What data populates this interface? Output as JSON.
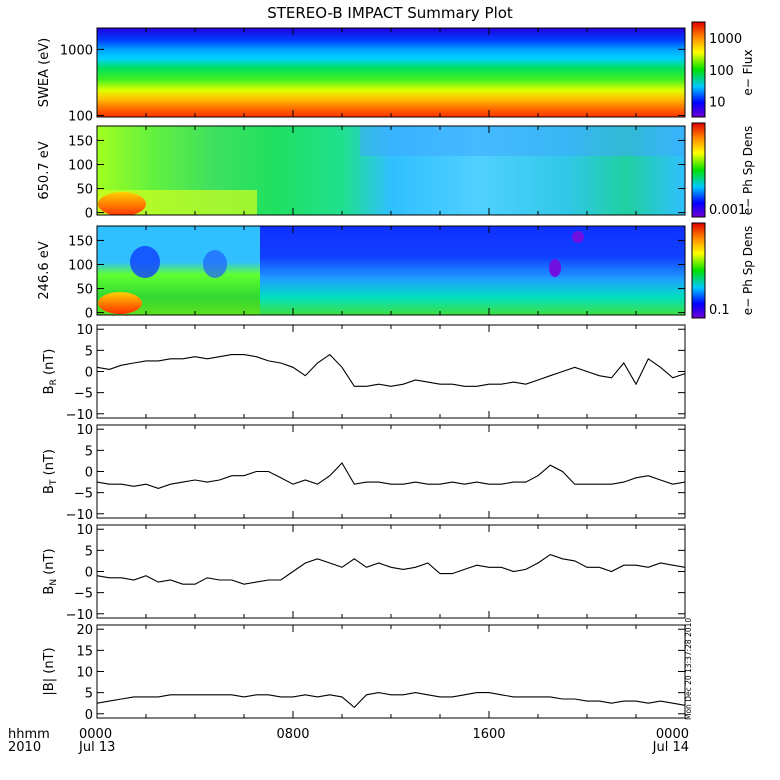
{
  "title": "STEREO-B IMPACT Summary Plot",
  "stamp": "Mon Dec 20 13:37:28 2010",
  "x_axis": {
    "label_line1": "hhmm",
    "label_line2": "2010",
    "ticks": [
      {
        "hours": 0,
        "top": "0000",
        "bottom": "Jul 13"
      },
      {
        "hours": 8,
        "top": "0800",
        "bottom": ""
      },
      {
        "hours": 16,
        "top": "1600",
        "bottom": ""
      },
      {
        "hours": 24,
        "top": "0000",
        "bottom": "Jul 14"
      }
    ],
    "range_hours": [
      0,
      24
    ]
  },
  "chart_data": [
    {
      "type": "heatmap",
      "ylabel": "SWEA (eV)",
      "yscale": "log",
      "ylim": [
        95,
        2100
      ],
      "yticks": [
        {
          "v": 100,
          "label": "100"
        },
        {
          "v": 1000,
          "label": "1000"
        }
      ],
      "colorbar": {
        "label": "e− Flux",
        "scale": "log",
        "range": [
          3,
          3000
        ],
        "ticks": [
          {
            "v": 10,
            "label": "10"
          },
          {
            "v": 100,
            "label": "100"
          },
          {
            "v": 1000,
            "label": "1000"
          }
        ]
      }
    },
    {
      "type": "heatmap",
      "ylabel": "650.7 eV",
      "ylim": [
        -5,
        180
      ],
      "yticks": [
        {
          "v": 0,
          "label": "0"
        },
        {
          "v": 50,
          "label": "50"
        },
        {
          "v": 100,
          "label": "100"
        },
        {
          "v": 150,
          "label": "150"
        }
      ],
      "colorbar": {
        "label": "e− Ph Sp Dens",
        "ticks": [
          {
            "label": "0.001"
          }
        ]
      }
    },
    {
      "type": "heatmap",
      "ylabel": "246.6 eV",
      "ylim": [
        -5,
        180
      ],
      "yticks": [
        {
          "v": 0,
          "label": "0"
        },
        {
          "v": 50,
          "label": "50"
        },
        {
          "v": 100,
          "label": "100"
        },
        {
          "v": 150,
          "label": "150"
        }
      ],
      "colorbar": {
        "label": "e− Ph Sp Dens",
        "ticks": [
          {
            "label": "0.1"
          }
        ]
      }
    },
    {
      "type": "line",
      "ylabel_main": "B",
      "ylabel_sub": "R",
      "ylabel_unit": "(nT)",
      "ylim": [
        -11,
        11
      ],
      "yticks": [
        {
          "v": -10,
          "label": "−10"
        },
        {
          "v": -5,
          "label": "−5"
        },
        {
          "v": 0,
          "label": "0"
        },
        {
          "v": 5,
          "label": "5"
        },
        {
          "v": 10,
          "label": "10"
        }
      ],
      "x": [
        0,
        0.5,
        1,
        1.5,
        2,
        2.5,
        3,
        3.5,
        4,
        4.5,
        5,
        5.5,
        6,
        6.5,
        7,
        7.5,
        8,
        8.5,
        9,
        9.5,
        10,
        10.5,
        11,
        11.5,
        12,
        12.5,
        13,
        13.5,
        14,
        14.5,
        15,
        15.5,
        16,
        16.5,
        17,
        17.5,
        18,
        18.5,
        19,
        19.5,
        20,
        20.5,
        21,
        21.5,
        22,
        22.5,
        23,
        23.5,
        24
      ],
      "y": [
        1,
        0.5,
        1.5,
        2,
        2.5,
        2.5,
        3,
        3,
        3.5,
        3,
        3.5,
        4,
        4,
        3.5,
        2.5,
        2,
        1,
        -1,
        2,
        4,
        1,
        -3.5,
        -3.5,
        -3,
        -3.5,
        -3,
        -2,
        -2.5,
        -3,
        -3,
        -3.5,
        -3.5,
        -3,
        -3,
        -2.5,
        -3,
        -2,
        -1,
        0,
        1,
        0,
        -1,
        -1.5,
        2,
        -3,
        3,
        1,
        -1.5,
        -0.5
      ]
    },
    {
      "type": "line",
      "ylabel_main": "B",
      "ylabel_sub": "T",
      "ylabel_unit": "(nT)",
      "ylim": [
        -11,
        11
      ],
      "yticks": [
        {
          "v": -10,
          "label": "−10"
        },
        {
          "v": -5,
          "label": "−5"
        },
        {
          "v": 0,
          "label": "0"
        },
        {
          "v": 5,
          "label": "5"
        },
        {
          "v": 10,
          "label": "10"
        }
      ],
      "x": [
        0,
        0.5,
        1,
        1.5,
        2,
        2.5,
        3,
        3.5,
        4,
        4.5,
        5,
        5.5,
        6,
        6.5,
        7,
        7.5,
        8,
        8.5,
        9,
        9.5,
        10,
        10.5,
        11,
        11.5,
        12,
        12.5,
        13,
        13.5,
        14,
        14.5,
        15,
        15.5,
        16,
        16.5,
        17,
        17.5,
        18,
        18.5,
        19,
        19.5,
        20,
        20.5,
        21,
        21.5,
        22,
        22.5,
        23,
        23.5,
        24
      ],
      "y": [
        -2.5,
        -3,
        -3,
        -3.5,
        -3,
        -4,
        -3,
        -2.5,
        -2,
        -2.5,
        -2,
        -1,
        -1,
        0,
        0,
        -1.5,
        -3,
        -2,
        -3,
        -1,
        2,
        -3,
        -2.5,
        -2.5,
        -3,
        -3,
        -2.5,
        -3,
        -3,
        -2.5,
        -3,
        -2.5,
        -3,
        -3,
        -2.5,
        -2.5,
        -1,
        1.5,
        0,
        -3,
        -3,
        -3,
        -3,
        -2.5,
        -1.5,
        -1,
        -2,
        -3,
        -2.5
      ]
    },
    {
      "type": "line",
      "ylabel_main": "B",
      "ylabel_sub": "N",
      "ylabel_unit": "(nT)",
      "ylim": [
        -11,
        11
      ],
      "yticks": [
        {
          "v": -10,
          "label": "−10"
        },
        {
          "v": -5,
          "label": "−5"
        },
        {
          "v": 0,
          "label": "0"
        },
        {
          "v": 5,
          "label": "5"
        },
        {
          "v": 10,
          "label": "10"
        }
      ],
      "x": [
        0,
        0.5,
        1,
        1.5,
        2,
        2.5,
        3,
        3.5,
        4,
        4.5,
        5,
        5.5,
        6,
        6.5,
        7,
        7.5,
        8,
        8.5,
        9,
        9.5,
        10,
        10.5,
        11,
        11.5,
        12,
        12.5,
        13,
        13.5,
        14,
        14.5,
        15,
        15.5,
        16,
        16.5,
        17,
        17.5,
        18,
        18.5,
        19,
        19.5,
        20,
        20.5,
        21,
        21.5,
        22,
        22.5,
        23,
        23.5,
        24
      ],
      "y": [
        -1,
        -1.5,
        -1.5,
        -2,
        -1,
        -2.5,
        -2,
        -3,
        -3,
        -1.5,
        -2,
        -2,
        -3,
        -2.5,
        -2,
        -2,
        0,
        2,
        3,
        2,
        1,
        3,
        1,
        2,
        1,
        0.5,
        1,
        2,
        -0.5,
        -0.5,
        0.5,
        1.5,
        1,
        1,
        0,
        0.5,
        2,
        4,
        3,
        2.5,
        1,
        1,
        0,
        1.5,
        1.5,
        1,
        2,
        1.5,
        1
      ]
    },
    {
      "type": "line",
      "ylabel_main": "|B|",
      "ylabel_sub": "",
      "ylabel_unit": "(nT)",
      "ylim": [
        -1,
        21
      ],
      "yticks": [
        {
          "v": 0,
          "label": "0"
        },
        {
          "v": 5,
          "label": "5"
        },
        {
          "v": 10,
          "label": "10"
        },
        {
          "v": 15,
          "label": "15"
        },
        {
          "v": 20,
          "label": "20"
        }
      ],
      "x": [
        0,
        0.5,
        1,
        1.5,
        2,
        2.5,
        3,
        3.5,
        4,
        4.5,
        5,
        5.5,
        6,
        6.5,
        7,
        7.5,
        8,
        8.5,
        9,
        9.5,
        10,
        10.5,
        11,
        11.5,
        12,
        12.5,
        13,
        13.5,
        14,
        14.5,
        15,
        15.5,
        16,
        16.5,
        17,
        17.5,
        18,
        18.5,
        19,
        19.5,
        20,
        20.5,
        21,
        21.5,
        22,
        22.5,
        23,
        23.5,
        24
      ],
      "y": [
        2.5,
        3,
        3.5,
        4,
        4,
        4,
        4.5,
        4.5,
        4.5,
        4.5,
        4.5,
        4.5,
        4,
        4.5,
        4.5,
        4,
        4,
        4.5,
        4,
        4.5,
        4,
        1.5,
        4.5,
        5,
        4.5,
        4.5,
        5,
        4.5,
        4,
        4,
        4.5,
        5,
        5,
        4.5,
        4,
        4,
        4,
        4,
        3.5,
        3.5,
        3,
        3,
        2.5,
        3,
        3,
        2.5,
        3,
        2.5,
        2
      ]
    }
  ]
}
